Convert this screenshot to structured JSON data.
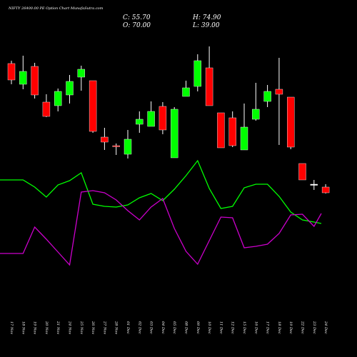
{
  "chart_data": {
    "type": "candlestick",
    "title": "NIFTY 26400.00 PE Option  Chart MunafaSutra.com",
    "ohlc": {
      "close_label": "C: 55.70",
      "high_label": "H: 74.90",
      "open_label": "O: 70.00",
      "low_label": "L: 39.00"
    },
    "x": [
      "17 Nov",
      "18 Nov",
      "19 Nov",
      "20 Nov",
      "21 Nov",
      "24 Nov",
      "25 Nov",
      "26 Nov",
      "27 Nov",
      "28 Nov",
      "01 Dec",
      "02 Dec",
      "03 Dec",
      "04 Dec",
      "05 Dec",
      "08 Dec",
      "09 Dec",
      "10 Dec",
      "11 Dec",
      "12 Dec",
      "15 Dec",
      "16 Dec",
      "17 Dec",
      "18 Dec",
      "19 Dec",
      "22 Dec",
      "23 Dec",
      "24 Dec"
    ],
    "candles": [
      {
        "o": 161,
        "h": 165,
        "l": 132,
        "c": 138
      },
      {
        "o": 132,
        "h": 172,
        "l": 125,
        "c": 150
      },
      {
        "o": 157,
        "h": 162,
        "l": 112,
        "c": 117
      },
      {
        "o": 107,
        "h": 118,
        "l": 86,
        "c": 87
      },
      {
        "o": 102,
        "h": 126,
        "l": 94,
        "c": 122
      },
      {
        "o": 117,
        "h": 145,
        "l": 105,
        "c": 136
      },
      {
        "o": 142,
        "h": 158,
        "l": 123,
        "c": 153
      },
      {
        "o": 137,
        "h": 137,
        "l": 64,
        "c": 66
      },
      {
        "o": 58,
        "h": 71,
        "l": 40,
        "c": 51
      },
      {
        "o": 46,
        "h": 49,
        "l": 33,
        "c": 45
      },
      {
        "o": 34,
        "h": 68,
        "l": 28,
        "c": 55
      },
      {
        "o": 76,
        "h": 94,
        "l": 64,
        "c": 83
      },
      {
        "o": 73,
        "h": 108,
        "l": 73,
        "c": 94
      },
      {
        "o": 101,
        "h": 107,
        "l": 62,
        "c": 68
      },
      {
        "o": 29,
        "h": 100,
        "l": 29,
        "c": 97
      },
      {
        "o": 115,
        "h": 137,
        "l": 115,
        "c": 127
      },
      {
        "o": 129,
        "h": 174,
        "l": 122,
        "c": 165
      },
      {
        "o": 155,
        "h": 185,
        "l": 102,
        "c": 102
      },
      {
        "o": 92,
        "h": 92,
        "l": 43,
        "c": 43
      },
      {
        "o": 85,
        "h": 94,
        "l": 44,
        "c": 46
      },
      {
        "o": 40,
        "h": 105,
        "l": 40,
        "c": 72
      },
      {
        "o": 83,
        "h": 134,
        "l": 81,
        "c": 97
      },
      {
        "o": 108,
        "h": 131,
        "l": 100,
        "c": 122
      },
      {
        "o": 125,
        "h": 169,
        "l": 47,
        "c": 118
      },
      {
        "o": 114,
        "h": 114,
        "l": 41,
        "c": 44
      },
      {
        "o": 21,
        "h": 21,
        "l": -2,
        "c": -2
      },
      {
        "o": -8,
        "h": -2,
        "l": -16,
        "c": -8
      },
      {
        "o": -12,
        "h": -8,
        "l": -21,
        "c": -20
      }
    ],
    "green_line": [
      -2,
      -2,
      -12,
      -26,
      -9,
      -3,
      8,
      -36,
      -39,
      -40,
      -37,
      -27,
      -21,
      -31,
      -15,
      4,
      25,
      -14,
      -42,
      -39,
      -13,
      -8,
      -8,
      -25,
      -47,
      -58,
      -61,
      -63
    ],
    "magenta_line": [
      -105,
      -105,
      -68,
      -85,
      -103,
      -121,
      -19,
      -17,
      -20,
      -30,
      -45,
      -58,
      -40,
      -28,
      -70,
      -102,
      -120,
      -87,
      -54,
      -55,
      -97,
      -95,
      -92,
      -77,
      -51,
      -50,
      -67,
      -49
    ],
    "ylim": [
      -190,
      190
    ],
    "grid": false,
    "colors": {
      "background": "#000000",
      "up": "#00ff00",
      "down": "#ff0000",
      "doji": "#ffffff",
      "green_line": "#00ff00",
      "magenta_line": "#cc00cc",
      "text": "#ffffff"
    }
  }
}
